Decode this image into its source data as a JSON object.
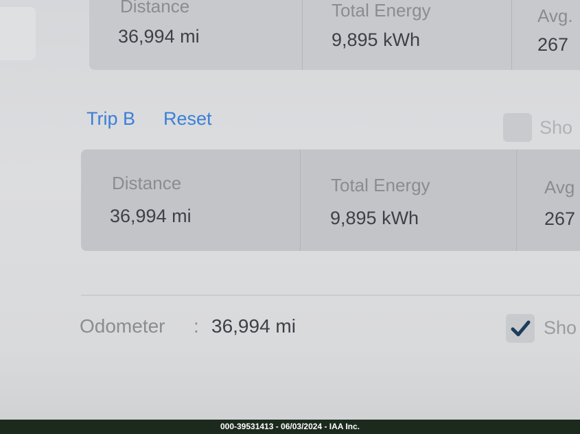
{
  "trip_a": {
    "columns": [
      {
        "label": "Distance",
        "value": "36,994 mi"
      },
      {
        "label": "Total Energy",
        "value": "9,895 kWh"
      },
      {
        "label": "Avg.",
        "value": "267"
      }
    ]
  },
  "trip_b": {
    "title": "Trip B",
    "reset_label": "Reset",
    "show_label": "Sho",
    "show_checked": false,
    "columns": [
      {
        "label": "Distance",
        "value": "36,994 mi"
      },
      {
        "label": "Total Energy",
        "value": "9,895 kWh"
      },
      {
        "label": "Avg",
        "value": "267"
      }
    ]
  },
  "odometer": {
    "label": "Odometer",
    "separator": ":",
    "value": "36,994 mi",
    "show_label": "Sho",
    "show_checked": true
  },
  "watermark": "000-39531413 - 06/03/2024 - IAA Inc.",
  "colors": {
    "accent": "#3a7fd6",
    "checkmark": "#1f3d5c"
  }
}
